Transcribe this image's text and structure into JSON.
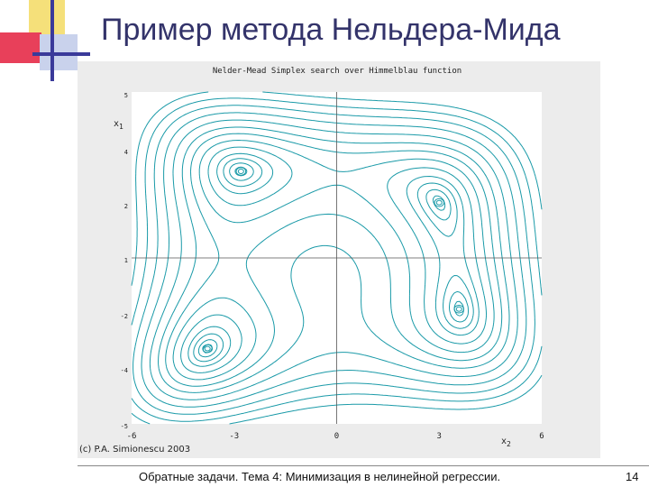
{
  "slide": {
    "title": "Пример метода Нельдера-Мида",
    "footer": "Обратные задачи. Тема 4: Минимизация в нелинейной регрессии.",
    "page_number": "14"
  },
  "plot": {
    "title": "Nelder-Mead Simplex search over Himmelblau function",
    "copyright": "(c) P.A. Simionescu 2003",
    "x_axis_label": "x",
    "x_axis_sub": "2",
    "y_axis_label": "x",
    "y_axis_sub": "1",
    "x_ticks": [
      "-6",
      "-3",
      "0",
      "3",
      "6"
    ],
    "y_ticks": [
      "5",
      "4",
      "2",
      "1",
      "-2",
      "-4",
      "-5"
    ],
    "line_color": "#1a9aa8",
    "minima": [
      {
        "x": -2.8,
        "y": 3.13
      },
      {
        "x": 3.0,
        "y": 2.0
      },
      {
        "x": 3.58,
        "y": -1.85
      },
      {
        "x": -3.78,
        "y": -3.28
      }
    ]
  }
}
